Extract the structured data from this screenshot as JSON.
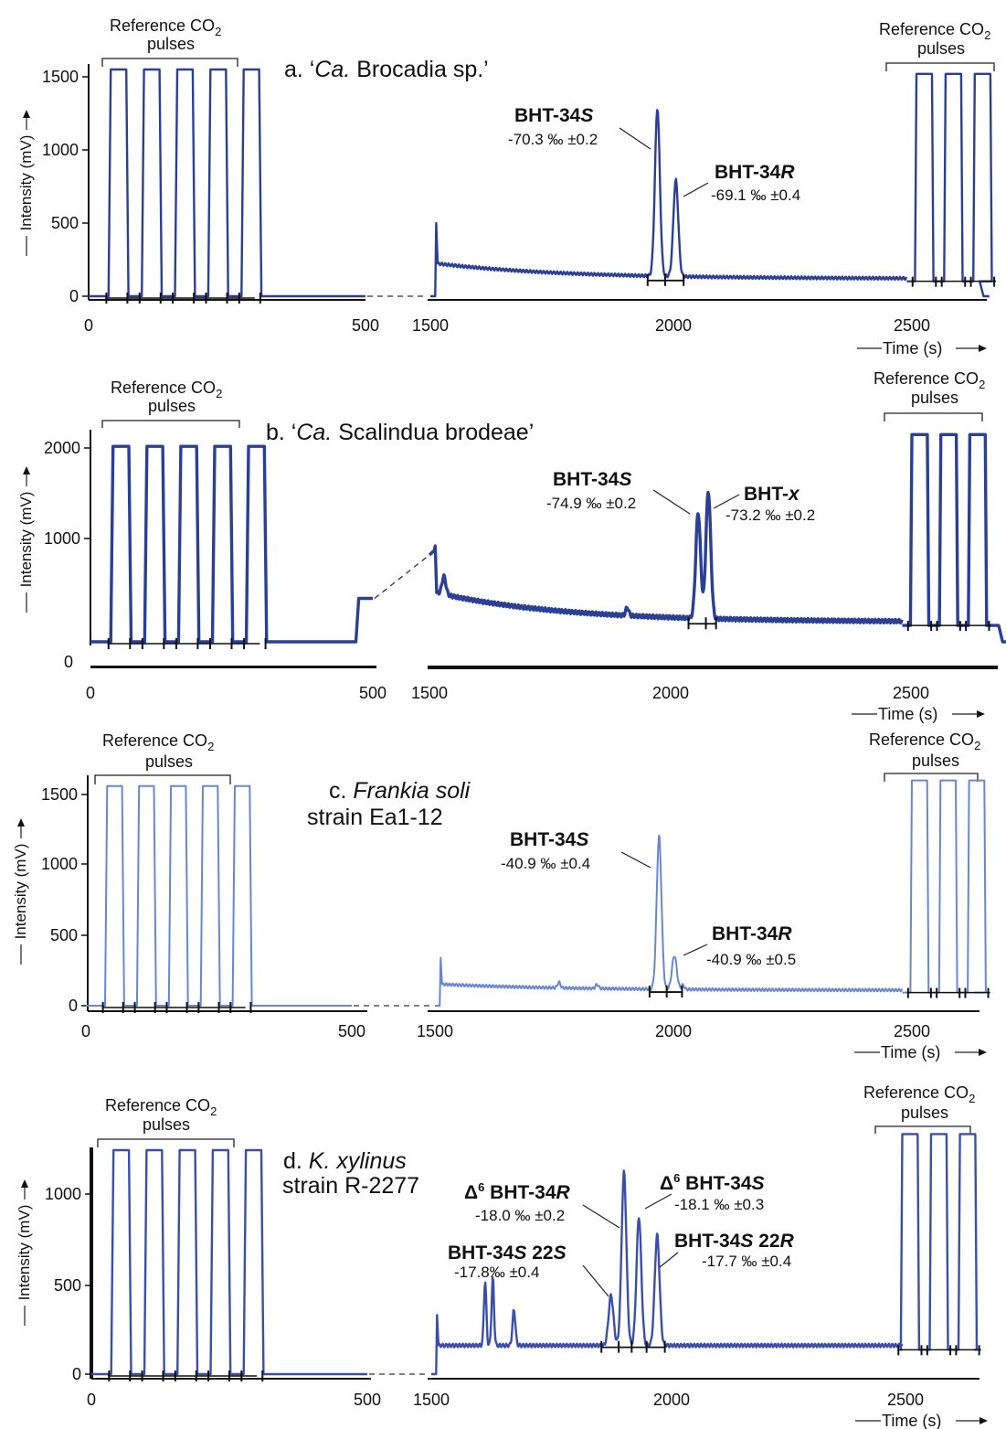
{
  "panels": [
    {
      "id": "a",
      "title_prefix": "a. ‘",
      "title_italic": "Ca.",
      "title_suffix": " Brocadia sp.’",
      "title_line2": "",
      "title_line2_italic": "",
      "color": "#2b3f94",
      "ylabel": "Intensity (mV)",
      "yticks": [
        "0",
        "500",
        "1000",
        "1500"
      ],
      "xticks": [
        "0",
        "500",
        "1500",
        "2000",
        "2500"
      ],
      "xlabel": "Time (s)",
      "ref_label_line1": "Reference CO",
      "ref_label_sub": "2",
      "ref_label_line2": "pulses",
      "ref_pulse_height": 1550,
      "ref_left_count": 5,
      "ref_right_count": 3,
      "baseline_level": 120,
      "peaks": [
        {
          "name_pre": "BHT-34",
          "name_ital": "S",
          "name_post": "",
          "delta": "",
          "value": "-70.3 ‰ ±0.2",
          "time": 1967,
          "height": 1270
        },
        {
          "name_pre": "BHT-34",
          "name_ital": "R",
          "name_post": "",
          "delta": "",
          "value": "-69.1 ‰ ±0.4",
          "time": 2005,
          "height": 780
        }
      ]
    },
    {
      "id": "b",
      "title_prefix": "b. ‘",
      "title_italic": "Ca.",
      "title_suffix": " Scalindua brodeae’",
      "title_line2": "",
      "title_line2_italic": "",
      "color": "#2b3f94",
      "ylabel": "Intensity (mV)",
      "yticks": [
        "0",
        "1000",
        "2000"
      ],
      "xticks": [
        "0",
        "500",
        "1500",
        "2000",
        "2500"
      ],
      "xlabel": "Time (s)",
      "ref_label_line1": "Reference CO",
      "ref_label_sub": "2",
      "ref_label_line2": "pulses",
      "ref_pulse_height": 2200,
      "ref_left_count": 5,
      "ref_right_count": 3,
      "baseline_level": 260,
      "peaks": [
        {
          "name_pre": "BHT-34",
          "name_ital": "S",
          "name_post": "",
          "delta": "",
          "value": "-74.9 ‰ ±0.2",
          "time": 2057,
          "height": 1430
        },
        {
          "name_pre": "BHT-",
          "name_ital": "x",
          "name_post": "",
          "delta": "",
          "value": "-73.2 ‰ ±0.2",
          "time": 2078,
          "height": 1670
        }
      ]
    },
    {
      "id": "c",
      "title_prefix": "c. ",
      "title_italic": "Frankia soli",
      "title_suffix": "",
      "title_line2": "strain Ea1-12",
      "title_line2_italic": "",
      "color": "#6a86d0",
      "ylabel": "Intensity (mV)",
      "yticks": [
        "0",
        "500",
        "1000",
        "1500"
      ],
      "xticks": [
        "0",
        "500",
        "1500",
        "2000",
        "2500"
      ],
      "xlabel": "Time (s)",
      "ref_label_line1": "Reference CO",
      "ref_label_sub": "2",
      "ref_label_line2": "pulses",
      "ref_pulse_height": 1560,
      "ref_left_count": 5,
      "ref_right_count": 3,
      "baseline_level": 110,
      "peaks": [
        {
          "name_pre": "BHT-34",
          "name_ital": "S",
          "name_post": "",
          "delta": "",
          "value": "-40.9 ‰ ±0.4",
          "time": 1970,
          "height": 1200
        },
        {
          "name_pre": "BHT-34",
          "name_ital": "R",
          "name_post": "",
          "delta": "",
          "value": "-40.9 ‰ ±0.5",
          "time": 2002,
          "height": 350
        }
      ]
    },
    {
      "id": "d",
      "title_prefix": "d. ",
      "title_italic": "K. xylinus",
      "title_suffix": "",
      "title_line2": "strain R-2277",
      "title_line2_italic": "",
      "color": "#3b4fa8",
      "ylabel": "Intensity (mV)",
      "yticks": [
        "0",
        "500",
        "1000"
      ],
      "xticks": [
        "0",
        "500",
        "1500",
        "2000",
        "2500"
      ],
      "xlabel": "Time (s)",
      "ref_label_line1": "Reference CO",
      "ref_label_sub": "2",
      "ref_label_line2": "pulses",
      "ref_pulse_height": 1250,
      "ref_left_count": 5,
      "ref_right_count": 3,
      "baseline_level": 160,
      "peaks": [
        {
          "name_pre": "BHT-34",
          "name_ital": "S",
          "name_post": " 22",
          "name_ital2": "S",
          "delta": "",
          "value": "-17.8‰ ±0.4",
          "time": 1874,
          "height": 440
        },
        {
          "name_pre": " BHT-34",
          "name_ital": "R",
          "name_post": "",
          "delta": "Δ",
          "delta_sup": "6",
          "value": "-18.0 ‰ ±0.2",
          "time": 1901,
          "height": 1130
        },
        {
          "name_pre": " BHT-34",
          "name_ital": "S",
          "name_post": "",
          "delta": "Δ",
          "delta_sup": "6",
          "value": "-18.1 ‰ ±0.3",
          "time": 1932,
          "height": 880
        },
        {
          "name_pre": "BHT-34",
          "name_ital": "S",
          "name_post": " 22",
          "name_ital2": "R",
          "delta": "",
          "value": "-17.7 ‰ ±0.4",
          "time": 1970,
          "height": 780
        }
      ]
    }
  ],
  "chart_data": [
    {
      "type": "line",
      "title": "a. ‘Ca. Brocadia sp.’",
      "xlabel": "Time (s)",
      "ylabel": "Intensity (mV)",
      "xlim": [
        0,
        2650
      ],
      "x_break": [
        500,
        1500
      ],
      "ylim": [
        0,
        1600
      ],
      "series": [
        {
          "name": "Reference CO2 pulses (start)",
          "x": [
            40,
            100,
            160,
            220,
            280
          ],
          "values": [
            1550,
            1550,
            1550,
            1550,
            1550
          ]
        },
        {
          "name": "BHT-34S",
          "x": [
            1967
          ],
          "values": [
            1270
          ]
        },
        {
          "name": "BHT-34R",
          "x": [
            2005
          ],
          "values": [
            780
          ]
        },
        {
          "name": "Reference CO2 pulses (end)",
          "x": [
            2500,
            2560,
            2620
          ],
          "values": [
            1520,
            1520,
            1520
          ]
        }
      ]
    },
    {
      "type": "line",
      "title": "b. ‘Ca. Scalindua brodeae’",
      "xlabel": "Time (s)",
      "ylabel": "Intensity (mV)",
      "xlim": [
        0,
        2700
      ],
      "x_break": [
        500,
        1500
      ],
      "ylim": [
        0,
        2300
      ],
      "series": [
        {
          "name": "Reference CO2 pulses (start)",
          "x": [
            40,
            100,
            160,
            220,
            280
          ],
          "values": [
            2200,
            2200,
            2200,
            2200,
            2200
          ]
        },
        {
          "name": "BHT-34S",
          "x": [
            2057
          ],
          "values": [
            1430
          ]
        },
        {
          "name": "BHT-x",
          "x": [
            2078
          ],
          "values": [
            1670
          ]
        },
        {
          "name": "Reference CO2 pulses (end)",
          "x": [
            2500,
            2560,
            2620
          ],
          "values": [
            2330,
            2330,
            2330
          ]
        }
      ]
    },
    {
      "type": "line",
      "title": "c. Frankia soli strain Ea1-12",
      "xlabel": "Time (s)",
      "ylabel": "Intensity (mV)",
      "xlim": [
        0,
        2650
      ],
      "x_break": [
        500,
        1500
      ],
      "ylim": [
        0,
        1600
      ],
      "series": [
        {
          "name": "Reference CO2 pulses (start)",
          "x": [
            40,
            100,
            160,
            220,
            280
          ],
          "values": [
            1560,
            1560,
            1560,
            1560,
            1560
          ]
        },
        {
          "name": "BHT-34S",
          "x": [
            1970
          ],
          "values": [
            1200
          ]
        },
        {
          "name": "BHT-34R",
          "x": [
            2002
          ],
          "values": [
            350
          ]
        },
        {
          "name": "Reference CO2 pulses (end)",
          "x": [
            2500,
            2560,
            2620
          ],
          "values": [
            1600,
            1600,
            1600
          ]
        }
      ]
    },
    {
      "type": "line",
      "title": "d. K. xylinus strain R-2277",
      "xlabel": "Time (s)",
      "ylabel": "Intensity (mV)",
      "xlim": [
        0,
        2650
      ],
      "x_break": [
        500,
        1500
      ],
      "ylim": [
        0,
        1300
      ],
      "series": [
        {
          "name": "Reference CO2 pulses (start)",
          "x": [
            40,
            100,
            160,
            220,
            280
          ],
          "values": [
            1250,
            1250,
            1250,
            1250,
            1250
          ]
        },
        {
          "name": "BHT-34S 22S",
          "x": [
            1874
          ],
          "values": [
            440
          ]
        },
        {
          "name": "Δ6 BHT-34R",
          "x": [
            1901
          ],
          "values": [
            1130
          ]
        },
        {
          "name": "Δ6 BHT-34S",
          "x": [
            1932
          ],
          "values": [
            880
          ]
        },
        {
          "name": "BHT-34S 22R",
          "x": [
            1970
          ],
          "values": [
            780
          ]
        },
        {
          "name": "Reference CO2 pulses (end)",
          "x": [
            2480,
            2540,
            2600
          ],
          "values": [
            1340,
            1340,
            1340
          ]
        }
      ]
    }
  ]
}
